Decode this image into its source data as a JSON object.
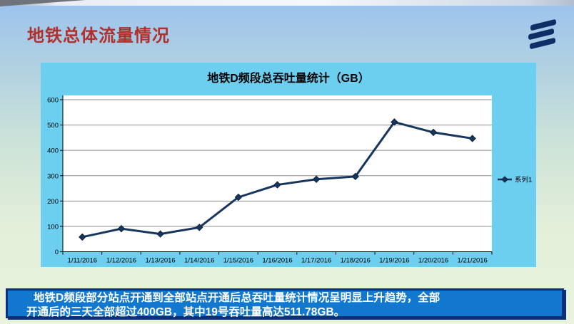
{
  "slide": {
    "title": "地铁总体流量情况",
    "logo": "ericsson-logo"
  },
  "chart_data": {
    "type": "line",
    "title": "地铁D频段总吞吐量统计（GB）",
    "categories": [
      "1/11/2016",
      "1/12/2016",
      "1/13/2016",
      "1/14/2016",
      "1/15/2016",
      "1/16/2016",
      "1/17/2016",
      "1/18/2016",
      "1/19/2016",
      "1/20/2016",
      "1/21/2016"
    ],
    "series": [
      {
        "name": "系列1",
        "values": [
          58,
          91,
          70,
          96,
          215,
          264,
          286,
          297,
          511.78,
          471,
          447
        ]
      }
    ],
    "xlabel": "",
    "ylabel": "",
    "ylim": [
      0,
      600
    ],
    "ytick_step": 100,
    "grid": true,
    "legend_position": "right",
    "marker": "diamond"
  },
  "footer": {
    "line1": "地铁D频段部分站点开通到全部站点开通后总吞吐量统计情况呈明显上升趋势，全部",
    "line2": "开通后的三天全部超过400GB，其中19号吞吐量高达511.78GB。"
  },
  "colors": {
    "title_text": "#b0302c",
    "chart_bg": "#6ccff0",
    "plot_bg": "#ffffff",
    "gridline": "#8c8c8c",
    "axis": "#000000",
    "series_line": "#17365d",
    "marker_edge": "#0d2440",
    "footer_bg": "#1277ce",
    "footer_border": "#0a3078",
    "footer_text": "#ffffff",
    "logo_navy": "#0e2f66"
  }
}
